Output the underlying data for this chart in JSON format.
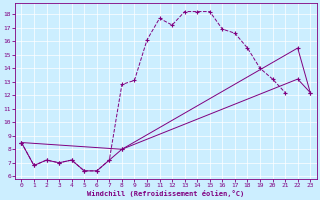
{
  "xlabel": "Windchill (Refroidissement éolien,°C)",
  "bg_color": "#cceeff",
  "line_color": "#800080",
  "xlim": [
    -0.5,
    23.5
  ],
  "ylim": [
    5.8,
    18.8
  ],
  "yticks": [
    6,
    7,
    8,
    9,
    10,
    11,
    12,
    13,
    14,
    15,
    16,
    17,
    18
  ],
  "xticks": [
    0,
    1,
    2,
    3,
    4,
    5,
    6,
    7,
    8,
    9,
    10,
    11,
    12,
    13,
    14,
    15,
    16,
    17,
    18,
    19,
    20,
    21,
    22,
    23
  ],
  "line1_x": [
    0,
    1,
    2,
    3,
    4,
    5,
    6,
    7,
    8,
    9,
    10,
    11,
    12,
    13,
    14,
    15,
    16,
    17,
    18,
    19,
    20,
    21,
    22,
    23
  ],
  "line1_y": [
    8.5,
    6.8,
    7.2,
    7.0,
    7.2,
    6.4,
    6.4,
    7.2,
    12.8,
    13.1,
    16.1,
    17.7,
    17.2,
    18.2,
    18.2,
    18.2,
    16.9,
    16.6,
    15.5,
    14.0,
    13.2,
    12.2
  ],
  "line1_xpts": [
    0,
    1,
    2,
    3,
    4,
    5,
    6,
    7,
    8,
    9,
    10,
    11,
    12,
    13,
    14,
    15,
    16,
    17,
    18,
    19,
    20,
    21
  ],
  "line2_x": [
    0,
    1,
    2,
    3,
    4,
    5,
    6,
    7,
    8,
    22,
    23
  ],
  "line2_y": [
    8.5,
    6.8,
    7.2,
    7.0,
    7.2,
    6.4,
    6.4,
    7.2,
    8.0,
    13.2,
    12.2
  ],
  "line3_x": [
    0,
    8,
    22,
    23
  ],
  "line3_y": [
    8.5,
    8.0,
    15.5,
    12.2
  ]
}
